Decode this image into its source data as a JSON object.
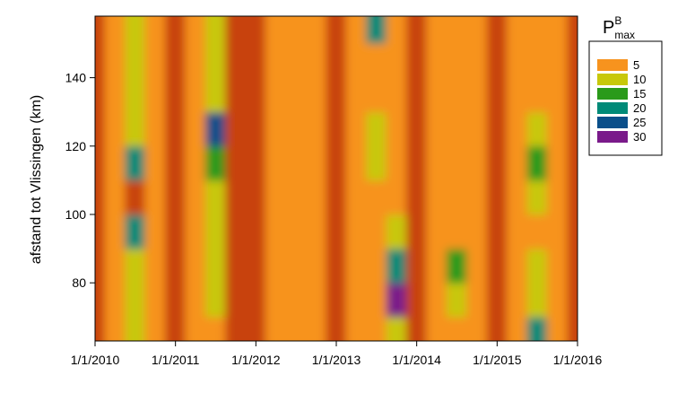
{
  "chart_data": {
    "type": "contour",
    "y_label": "afstand tot Vlissingen (km)",
    "xlim": [
      2010,
      2016
    ],
    "xticks": [
      {
        "value": 2010,
        "label": "1/1/2010"
      },
      {
        "value": 2011,
        "label": "1/1/2011"
      },
      {
        "value": 2012,
        "label": "1/1/2012"
      },
      {
        "value": 2013,
        "label": "1/1/2013"
      },
      {
        "value": 2014,
        "label": "1/1/2014"
      },
      {
        "value": 2015,
        "label": "1/1/2015"
      },
      {
        "value": 2016,
        "label": "1/1/2016"
      }
    ],
    "ylim": [
      63,
      158
    ],
    "yticks": [
      80,
      100,
      120,
      140
    ],
    "x": [
      2010,
      2010.25,
      2010.5,
      2010.75,
      2011,
      2011.25,
      2011.5,
      2011.75,
      2012,
      2012.25,
      2012.5,
      2012.75,
      2013,
      2013.25,
      2013.5,
      2013.75,
      2014,
      2014.25,
      2014.5,
      2014.75,
      2015,
      2015.25,
      2015.5,
      2015.75,
      2016
    ],
    "y": [
      65,
      75,
      85,
      95,
      105,
      115,
      125,
      135,
      145,
      155
    ],
    "z": [
      [
        3,
        6,
        10,
        5,
        3,
        6,
        9,
        4,
        2,
        6,
        7,
        5,
        3,
        6,
        8,
        12,
        3,
        6,
        8,
        5,
        2,
        8,
        20,
        6,
        4
      ],
      [
        3,
        6,
        11,
        5,
        3,
        6,
        10,
        4,
        2,
        6,
        7,
        5,
        3,
        6,
        8,
        30,
        3,
        6,
        11,
        5,
        2,
        6,
        14,
        6,
        4
      ],
      [
        3,
        6,
        12,
        5,
        3,
        6,
        10,
        4,
        2,
        6,
        7,
        5,
        3,
        6,
        8,
        24,
        3,
        6,
        15,
        5,
        2,
        6,
        10,
        6,
        4
      ],
      [
        3,
        6,
        20,
        5,
        3,
        6,
        11,
        4,
        2,
        6,
        7,
        5,
        3,
        6,
        8,
        10,
        3,
        6,
        9,
        5,
        2,
        6,
        9,
        6,
        4
      ],
      [
        3,
        6,
        3,
        5,
        3,
        6,
        11,
        4,
        2,
        6,
        7,
        5,
        3,
        6,
        9,
        7,
        3,
        6,
        7,
        5,
        2,
        6,
        10,
        6,
        4
      ],
      [
        3,
        7,
        22,
        5,
        3,
        6,
        18,
        3,
        2,
        6,
        7,
        5,
        3,
        6,
        14,
        7,
        3,
        6,
        7,
        5,
        2,
        6,
        15,
        6,
        4
      ],
      [
        3,
        6,
        13,
        5,
        3,
        6,
        26,
        2,
        2,
        6,
        7,
        5,
        3,
        6,
        10,
        7,
        3,
        6,
        9,
        5,
        2,
        6,
        11,
        6,
        4
      ],
      [
        3,
        6,
        12,
        5,
        3,
        6,
        11,
        4,
        2,
        6,
        8,
        5,
        3,
        6,
        8,
        7,
        3,
        6,
        7,
        5,
        2,
        6,
        9,
        6,
        4
      ],
      [
        3,
        6,
        12,
        5,
        3,
        6,
        10,
        4,
        2,
        6,
        9,
        5,
        3,
        6,
        9,
        7,
        3,
        6,
        7,
        5,
        2,
        6,
        9,
        6,
        4
      ],
      [
        3,
        6,
        12,
        5,
        3,
        6,
        10,
        4,
        2,
        6,
        8,
        5,
        3,
        6,
        20,
        7,
        3,
        6,
        7,
        5,
        2,
        6,
        9,
        6,
        4
      ]
    ],
    "legend": {
      "title": "P",
      "title_sup": "B",
      "title_sub": "max",
      "levels": [
        5,
        10,
        15,
        20,
        25,
        30
      ],
      "colors": [
        "#f7931e",
        "#c8c80a",
        "#2a9a1a",
        "#008a78",
        "#0a4f8a",
        "#7a1a8a"
      ]
    },
    "below_color": "#c8420c"
  }
}
